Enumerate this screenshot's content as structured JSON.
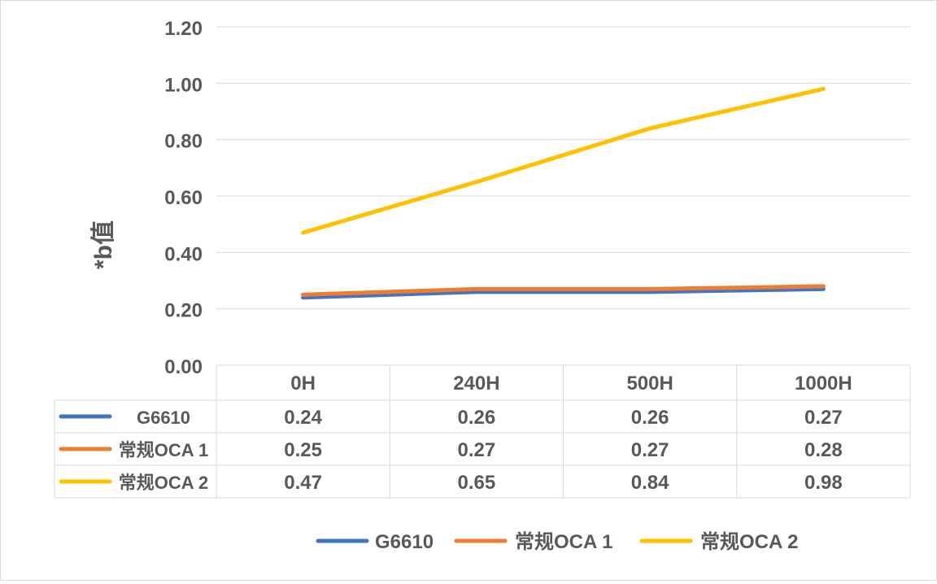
{
  "chart_data": {
    "type": "line",
    "ylabel": "*b值",
    "ylim": [
      0,
      1.2
    ],
    "y_ticks": [
      "0.00",
      "0.20",
      "0.40",
      "0.60",
      "0.80",
      "1.00",
      "1.20"
    ],
    "categories": [
      "0H",
      "240H",
      "500H",
      "1000H"
    ],
    "series": [
      {
        "name": "G6610",
        "color": "#4472c4",
        "values": [
          0.24,
          0.26,
          0.26,
          0.27
        ],
        "labels": [
          "0.24",
          "0.26",
          "0.26",
          "0.27"
        ]
      },
      {
        "name": "常规OCA 1",
        "color": "#ed7d31",
        "values": [
          0.25,
          0.27,
          0.27,
          0.28
        ],
        "labels": [
          "0.25",
          "0.27",
          "0.27",
          "0.28"
        ]
      },
      {
        "name": "常规OCA 2",
        "color": "#ffc000",
        "values": [
          0.47,
          0.65,
          0.84,
          0.98
        ],
        "labels": [
          "0.47",
          "0.65",
          "0.84",
          "0.98"
        ]
      }
    ],
    "grid": true,
    "data_table": true,
    "legend": "bottom"
  }
}
